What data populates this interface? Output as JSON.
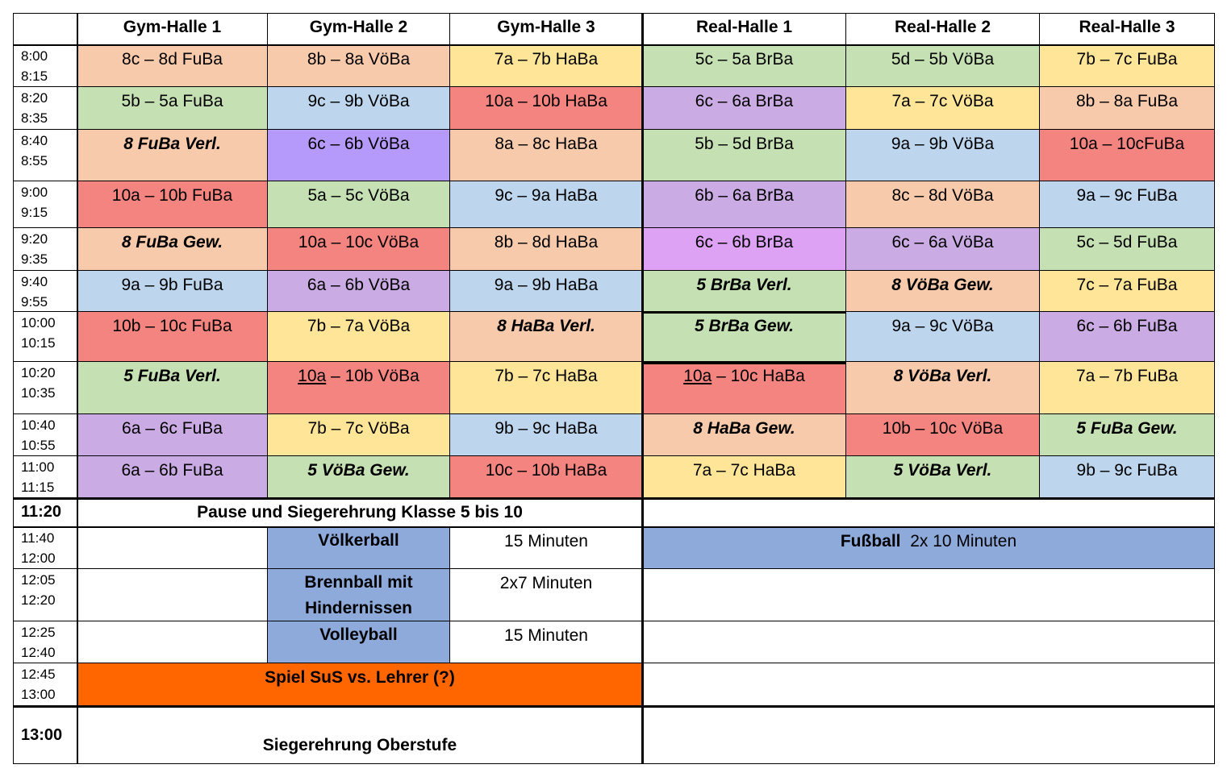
{
  "colors": {
    "peach": "#F7CAAC",
    "green": "#C5E0B3",
    "yellow": "#FFE598",
    "blue": "#BDD6EE",
    "red": "#F4847F",
    "purple": "#CBABE3",
    "violet": "#B599FB",
    "pink": "#DDA2F4",
    "navy": "#8EAADB",
    "orange": "#FF6600",
    "white": "#FFFFFF"
  },
  "header": {
    "corner": "",
    "halls": [
      "Gym-Halle 1",
      "Gym-Halle 2",
      "Gym-Halle 3",
      "Real-Halle 1",
      "Real-Halle 2",
      "Real-Halle 3"
    ]
  },
  "rows": [
    {
      "time": "8:00\n8:15",
      "cells": [
        {
          "text": "8c – 8d FuBa",
          "color": "peach"
        },
        {
          "text": "8b – 8a VöBa",
          "color": "peach"
        },
        {
          "text": "7a – 7b HaBa",
          "color": "yellow"
        },
        {
          "text": "5c – 5a BrBa",
          "color": "green"
        },
        {
          "text": "5d – 5b VöBa",
          "color": "green"
        },
        {
          "text": "7b – 7c FuBa",
          "color": "yellow"
        }
      ]
    },
    {
      "time": "8:20\n8:35",
      "cells": [
        {
          "text": "5b – 5a FuBa",
          "color": "green"
        },
        {
          "text": "9c – 9b VöBa",
          "color": "blue"
        },
        {
          "text": "10a – 10b HaBa",
          "color": "red"
        },
        {
          "text": "6c – 6a BrBa",
          "color": "purple"
        },
        {
          "text": "7a – 7c VöBa",
          "color": "yellow"
        },
        {
          "text": "8b – 8a FuBa",
          "color": "peach"
        }
      ]
    },
    {
      "time": "8:40\n8:55",
      "cells": [
        {
          "text": "8 FuBa Verl.",
          "color": "peach",
          "style": "bi"
        },
        {
          "text": "6c – 6b VöBa",
          "color": "violet"
        },
        {
          "text": "8a – 8c HaBa",
          "color": "peach"
        },
        {
          "text": "5b – 5d BrBa",
          "color": "green"
        },
        {
          "text": "9a – 9b VöBa",
          "color": "blue"
        },
        {
          "text": "10a – 10cFuBa",
          "color": "red"
        }
      ]
    },
    {
      "time": "9:00\n9:15",
      "cells": [
        {
          "text": "10a – 10b FuBa",
          "color": "red"
        },
        {
          "text": "5a – 5c VöBa",
          "color": "green"
        },
        {
          "text": "9c – 9a HaBa",
          "color": "blue"
        },
        {
          "text": "6b – 6a BrBa",
          "color": "purple"
        },
        {
          "text": "8c – 8d VöBa",
          "color": "peach"
        },
        {
          "text": "9a – 9c FuBa",
          "color": "blue"
        }
      ]
    },
    {
      "time": "9:20\n9:35",
      "cells": [
        {
          "text": "8 FuBa Gew.",
          "color": "peach",
          "style": "bi"
        },
        {
          "text": "10a – 10c VöBa",
          "color": "red"
        },
        {
          "text": "8b – 8d HaBa",
          "color": "peach"
        },
        {
          "text": "6c – 6b BrBa",
          "color": "pink"
        },
        {
          "text": "6c – 6a VöBa",
          "color": "purple"
        },
        {
          "text": "5c – 5d FuBa",
          "color": "green"
        }
      ]
    },
    {
      "time": "9:40\n9:55",
      "cells": [
        {
          "text": "9a – 9b FuBa",
          "color": "blue"
        },
        {
          "text": "6a – 6b VöBa",
          "color": "purple"
        },
        {
          "text": "9a – 9b HaBa",
          "color": "blue"
        },
        {
          "text": "5 BrBa Verl.",
          "color": "green",
          "style": "bi"
        },
        {
          "text": "8 VöBa Gew.",
          "color": "peach",
          "style": "bi"
        },
        {
          "text": "7c – 7a FuBa",
          "color": "yellow"
        }
      ]
    },
    {
      "time": "10:00\n10:15",
      "cells": [
        {
          "text": "10b – 10c FuBa",
          "color": "red"
        },
        {
          "text": "7b – 7a VöBa",
          "color": "yellow"
        },
        {
          "text": "8 HaBa Verl.",
          "color": "peach",
          "style": "bi"
        },
        {
          "text": "5 BrBa Gew.",
          "color": "green",
          "style": "bi"
        },
        {
          "text": "9a – 9c VöBa",
          "color": "blue"
        },
        {
          "text": "6c – 6b FuBa",
          "color": "purple"
        }
      ]
    },
    {
      "time": "10:20\n10:35",
      "cells": [
        {
          "text": "5 FuBa Verl.",
          "color": "green",
          "style": "bi"
        },
        {
          "text": "10a – 10b VöBa",
          "color": "red"
        },
        {
          "text": "7b – 7c HaBa",
          "color": "yellow"
        },
        {
          "text": "10a – 10c HaBa",
          "color": "red"
        },
        {
          "text": "8 VöBa Verl.",
          "color": "peach",
          "style": "bi"
        },
        {
          "text": "7a – 7b FuBa",
          "color": "yellow"
        }
      ]
    },
    {
      "time": "10:40\n10:55",
      "cells": [
        {
          "text": "6a – 6c FuBa",
          "color": "purple"
        },
        {
          "text": "7b – 7c VöBa",
          "color": "yellow"
        },
        {
          "text": "9b – 9c HaBa",
          "color": "blue"
        },
        {
          "text": "8 HaBa Gew.",
          "color": "peach",
          "style": "bi"
        },
        {
          "text": "10b – 10c VöBa",
          "color": "red"
        },
        {
          "text": "5 FuBa Gew.",
          "color": "green",
          "style": "bi"
        }
      ]
    },
    {
      "time": "11:00\n11:15",
      "cells": [
        {
          "text": "6a – 6b FuBa",
          "color": "purple"
        },
        {
          "text": "5  VöBa Gew.",
          "color": "green",
          "style": "bi"
        },
        {
          "text": "10c – 10b HaBa",
          "color": "red"
        },
        {
          "text": "7a – 7c HaBa",
          "color": "yellow"
        },
        {
          "text": "5 VöBa Verl.",
          "color": "green",
          "style": "bi"
        },
        {
          "text": "9b – 9c FuBa",
          "color": "blue"
        }
      ]
    }
  ],
  "pause": {
    "time": "11:20",
    "text": "Pause und Siegerehrung Klasse 5 bis 10",
    "right": ""
  },
  "finals": [
    {
      "time": "11:40\n12:00",
      "sport": "Völkerball",
      "duration": "15 Minuten",
      "right_bold": "Fußball",
      "right_normal": "  2x 10 Minuten"
    },
    {
      "time": "12:05\n12:20",
      "sport": "Brennball mit\nHindernissen",
      "duration": "2x7 Minuten",
      "right_bold": "",
      "right_normal": ""
    },
    {
      "time": "12:25\n12:40",
      "sport": "Volleyball",
      "duration": "15 Minuten",
      "right_bold": "",
      "right_normal": ""
    }
  ],
  "teachers_game": {
    "time": "12:45\n13:00",
    "text": "Spiel SuS vs. Lehrer (?)"
  },
  "final_ceremony": {
    "time": "13:00",
    "text": "Siegerehrung Oberstufe"
  }
}
